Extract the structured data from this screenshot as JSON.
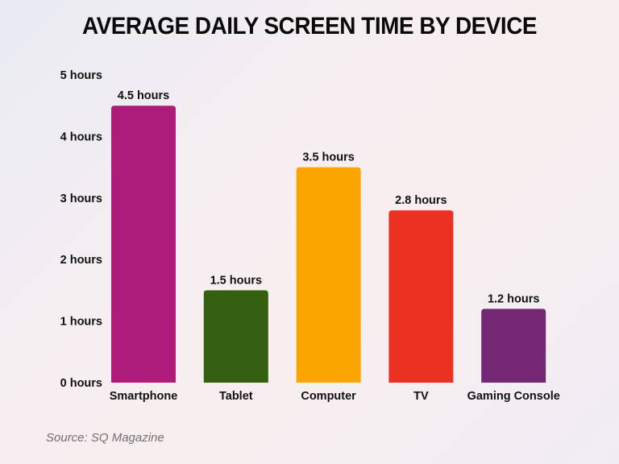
{
  "chart_data": {
    "type": "bar",
    "title": "AVERAGE DAILY SCREEN TIME BY DEVICE",
    "categories": [
      "Smartphone",
      "Tablet",
      "Computer",
      "TV",
      "Gaming Console"
    ],
    "values": [
      4.5,
      1.5,
      3.5,
      2.8,
      1.2
    ],
    "data_labels": [
      "4.5 hours",
      "1.5 hours",
      "3.5 hours",
      "2.8 hours",
      "1.2 hours"
    ],
    "colors": [
      "#ad1c7a",
      "#346010",
      "#fba600",
      "#eb3122",
      "#742772"
    ],
    "yticks": [
      0,
      1,
      2,
      3,
      4,
      5
    ],
    "ytick_labels": [
      "0 hours",
      "1 hours",
      "2 hours",
      "3 hours",
      "4 hours",
      "5 hours"
    ],
    "ylim": [
      0,
      5
    ],
    "xlabel": "",
    "ylabel": "",
    "grid": false,
    "legend": "none"
  },
  "source": "Source: SQ Magazine"
}
